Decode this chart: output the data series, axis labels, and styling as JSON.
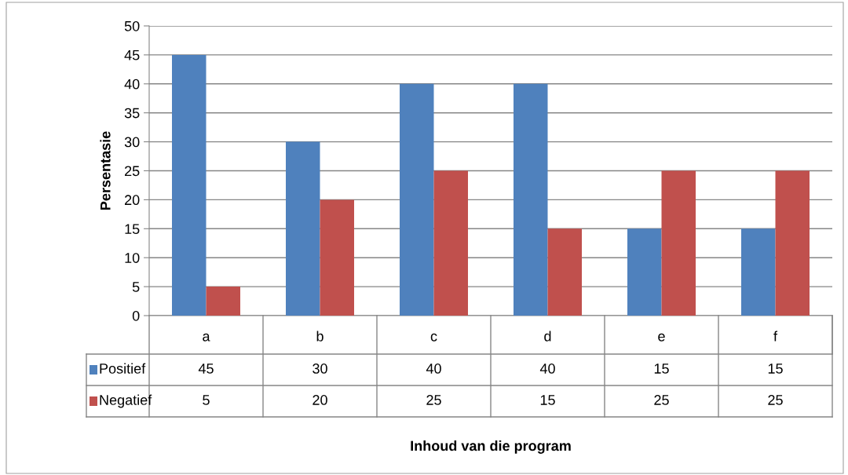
{
  "chart_data": {
    "type": "bar",
    "annotations": [
      "Inhoud van die program"
    ],
    "ylabel": "Persentasie",
    "categories": [
      "a",
      "b",
      "c",
      "d",
      "e",
      "f"
    ],
    "series": [
      {
        "name": "Positief",
        "color": "#4f81bd",
        "values": [
          45,
          30,
          40,
          40,
          15,
          15
        ]
      },
      {
        "name": "Negatief",
        "color": "#c0504d",
        "values": [
          5,
          20,
          25,
          15,
          25,
          25
        ]
      }
    ],
    "ylim": [
      0,
      50
    ],
    "yticks": [
      0,
      5,
      10,
      15,
      20,
      25,
      30,
      35,
      40,
      45,
      50
    ],
    "grid": "y",
    "data_labels": true,
    "legend": "bottom left"
  }
}
